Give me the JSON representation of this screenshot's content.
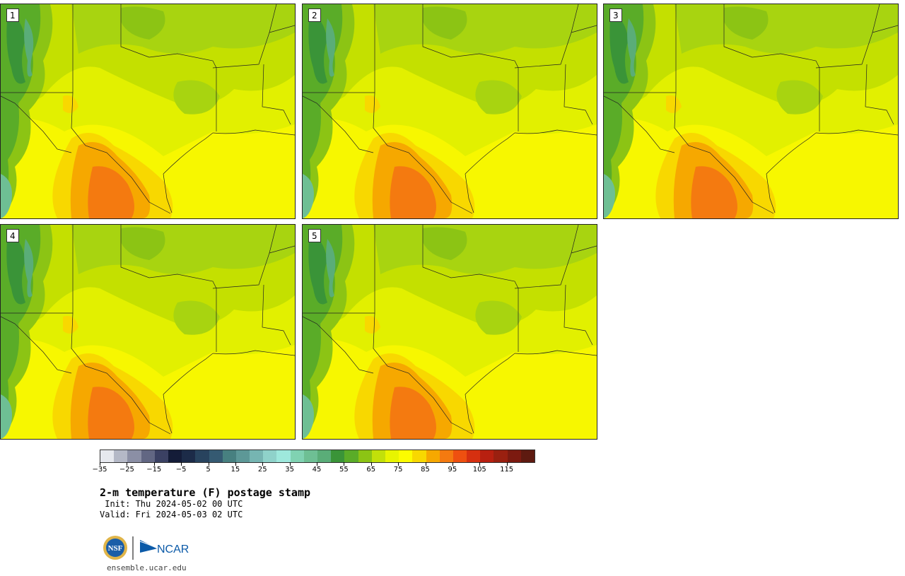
{
  "panels": [
    {
      "label": "1"
    },
    {
      "label": "2"
    },
    {
      "label": "3"
    },
    {
      "label": "4"
    },
    {
      "label": "5"
    }
  ],
  "colorbar": {
    "colors": [
      "#e6e8ee",
      "#b4b8c6",
      "#8b8fa5",
      "#626783",
      "#3b4163",
      "#141c38",
      "#1c2b48",
      "#28435e",
      "#355a72",
      "#478080",
      "#5d9897",
      "#76b5b2",
      "#8fd2ca",
      "#9ee8dc",
      "#80d2b2",
      "#6ebf94",
      "#5aad78",
      "#3a9438",
      "#5aac28",
      "#8cc414",
      "#c2e00a",
      "#e8f400",
      "#fcfc00",
      "#f8d800",
      "#f6a800",
      "#f47a10",
      "#ee5010",
      "#d63010",
      "#b82010",
      "#9a2010",
      "#7c1a10",
      "#5e1a10"
    ],
    "ticks": [
      "−35",
      "−25",
      "−15",
      "−5",
      "5",
      "15",
      "25",
      "35",
      "45",
      "55",
      "65",
      "75",
      "85",
      "95",
      "105",
      "115"
    ]
  },
  "title": "2-m temperature (F) postage stamp",
  "init": " Init: Thu 2024-05-02 00 UTC",
  "valid": "Valid: Fri 2024-05-03 02 UTC",
  "logos": {
    "nsf": "NSF",
    "ncar": "NCAR"
  },
  "website": "ensemble.ucar.edu"
}
